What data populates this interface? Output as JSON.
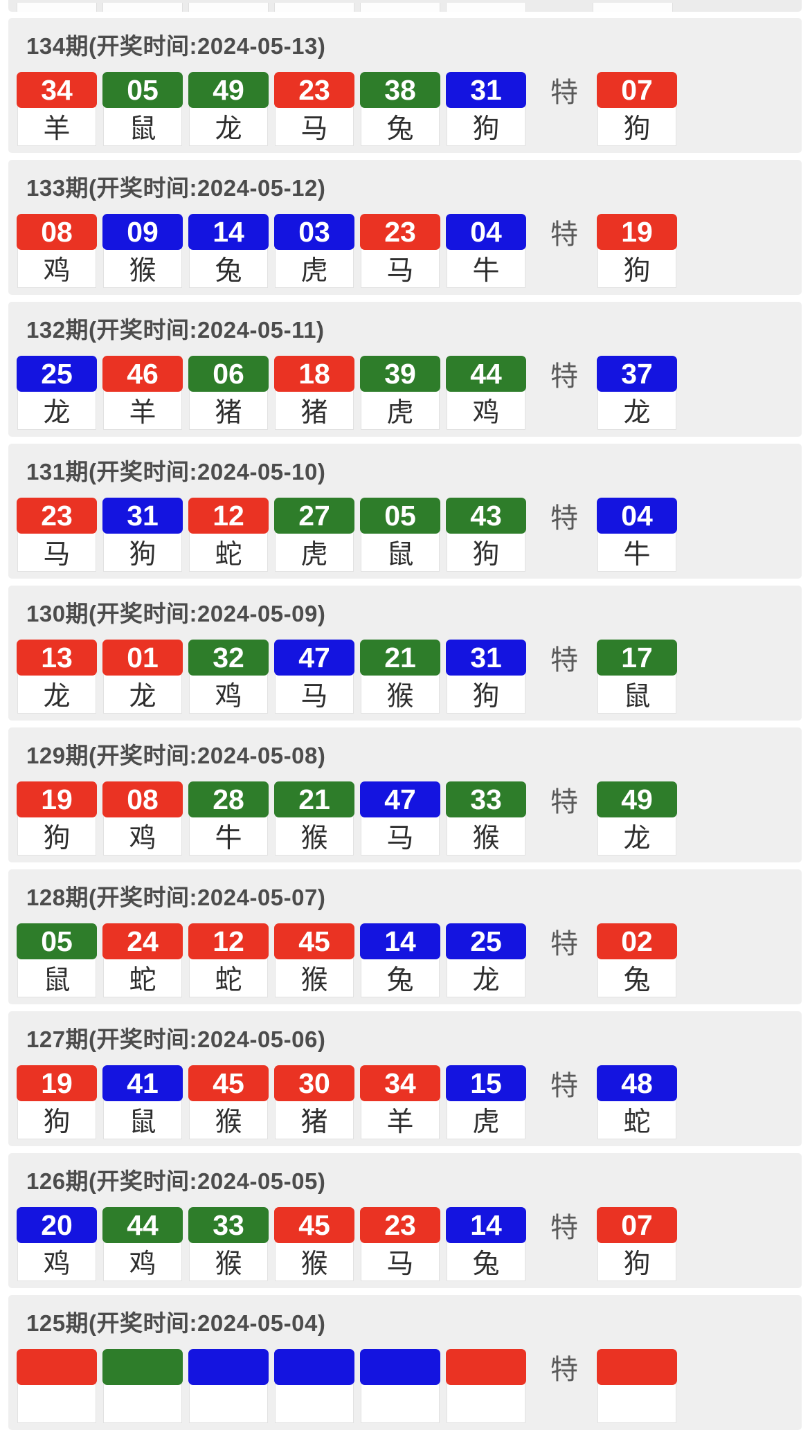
{
  "special_label": "特",
  "colors": {
    "red": "#ea3323",
    "green": "#2e7d2a",
    "blue": "#1414e0"
  },
  "periods": [
    {
      "title": "134期(开奖时间:2024-05-13)",
      "balls": [
        {
          "num": "34",
          "color": "red",
          "zodiac": "羊"
        },
        {
          "num": "05",
          "color": "green",
          "zodiac": "鼠"
        },
        {
          "num": "49",
          "color": "green",
          "zodiac": "龙"
        },
        {
          "num": "23",
          "color": "red",
          "zodiac": "马"
        },
        {
          "num": "38",
          "color": "green",
          "zodiac": "兔"
        },
        {
          "num": "31",
          "color": "blue",
          "zodiac": "狗"
        }
      ],
      "special": {
        "num": "07",
        "color": "red",
        "zodiac": "狗"
      }
    },
    {
      "title": "133期(开奖时间:2024-05-12)",
      "balls": [
        {
          "num": "08",
          "color": "red",
          "zodiac": "鸡"
        },
        {
          "num": "09",
          "color": "blue",
          "zodiac": "猴"
        },
        {
          "num": "14",
          "color": "blue",
          "zodiac": "兔"
        },
        {
          "num": "03",
          "color": "blue",
          "zodiac": "虎"
        },
        {
          "num": "23",
          "color": "red",
          "zodiac": "马"
        },
        {
          "num": "04",
          "color": "blue",
          "zodiac": "牛"
        }
      ],
      "special": {
        "num": "19",
        "color": "red",
        "zodiac": "狗"
      }
    },
    {
      "title": "132期(开奖时间:2024-05-11)",
      "balls": [
        {
          "num": "25",
          "color": "blue",
          "zodiac": "龙"
        },
        {
          "num": "46",
          "color": "red",
          "zodiac": "羊"
        },
        {
          "num": "06",
          "color": "green",
          "zodiac": "猪"
        },
        {
          "num": "18",
          "color": "red",
          "zodiac": "猪"
        },
        {
          "num": "39",
          "color": "green",
          "zodiac": "虎"
        },
        {
          "num": "44",
          "color": "green",
          "zodiac": "鸡"
        }
      ],
      "special": {
        "num": "37",
        "color": "blue",
        "zodiac": "龙"
      }
    },
    {
      "title": "131期(开奖时间:2024-05-10)",
      "balls": [
        {
          "num": "23",
          "color": "red",
          "zodiac": "马"
        },
        {
          "num": "31",
          "color": "blue",
          "zodiac": "狗"
        },
        {
          "num": "12",
          "color": "red",
          "zodiac": "蛇"
        },
        {
          "num": "27",
          "color": "green",
          "zodiac": "虎"
        },
        {
          "num": "05",
          "color": "green",
          "zodiac": "鼠"
        },
        {
          "num": "43",
          "color": "green",
          "zodiac": "狗"
        }
      ],
      "special": {
        "num": "04",
        "color": "blue",
        "zodiac": "牛"
      }
    },
    {
      "title": "130期(开奖时间:2024-05-09)",
      "balls": [
        {
          "num": "13",
          "color": "red",
          "zodiac": "龙"
        },
        {
          "num": "01",
          "color": "red",
          "zodiac": "龙"
        },
        {
          "num": "32",
          "color": "green",
          "zodiac": "鸡"
        },
        {
          "num": "47",
          "color": "blue",
          "zodiac": "马"
        },
        {
          "num": "21",
          "color": "green",
          "zodiac": "猴"
        },
        {
          "num": "31",
          "color": "blue",
          "zodiac": "狗"
        }
      ],
      "special": {
        "num": "17",
        "color": "green",
        "zodiac": "鼠"
      }
    },
    {
      "title": "129期(开奖时间:2024-05-08)",
      "balls": [
        {
          "num": "19",
          "color": "red",
          "zodiac": "狗"
        },
        {
          "num": "08",
          "color": "red",
          "zodiac": "鸡"
        },
        {
          "num": "28",
          "color": "green",
          "zodiac": "牛"
        },
        {
          "num": "21",
          "color": "green",
          "zodiac": "猴"
        },
        {
          "num": "47",
          "color": "blue",
          "zodiac": "马"
        },
        {
          "num": "33",
          "color": "green",
          "zodiac": "猴"
        }
      ],
      "special": {
        "num": "49",
        "color": "green",
        "zodiac": "龙"
      }
    },
    {
      "title": "128期(开奖时间:2024-05-07)",
      "balls": [
        {
          "num": "05",
          "color": "green",
          "zodiac": "鼠"
        },
        {
          "num": "24",
          "color": "red",
          "zodiac": "蛇"
        },
        {
          "num": "12",
          "color": "red",
          "zodiac": "蛇"
        },
        {
          "num": "45",
          "color": "red",
          "zodiac": "猴"
        },
        {
          "num": "14",
          "color": "blue",
          "zodiac": "兔"
        },
        {
          "num": "25",
          "color": "blue",
          "zodiac": "龙"
        }
      ],
      "special": {
        "num": "02",
        "color": "red",
        "zodiac": "兔"
      }
    },
    {
      "title": "127期(开奖时间:2024-05-06)",
      "balls": [
        {
          "num": "19",
          "color": "red",
          "zodiac": "狗"
        },
        {
          "num": "41",
          "color": "blue",
          "zodiac": "鼠"
        },
        {
          "num": "45",
          "color": "red",
          "zodiac": "猴"
        },
        {
          "num": "30",
          "color": "red",
          "zodiac": "猪"
        },
        {
          "num": "34",
          "color": "red",
          "zodiac": "羊"
        },
        {
          "num": "15",
          "color": "blue",
          "zodiac": "虎"
        }
      ],
      "special": {
        "num": "48",
        "color": "blue",
        "zodiac": "蛇"
      }
    },
    {
      "title": "126期(开奖时间:2024-05-05)",
      "balls": [
        {
          "num": "20",
          "color": "blue",
          "zodiac": "鸡"
        },
        {
          "num": "44",
          "color": "green",
          "zodiac": "鸡"
        },
        {
          "num": "33",
          "color": "green",
          "zodiac": "猴"
        },
        {
          "num": "45",
          "color": "red",
          "zodiac": "猴"
        },
        {
          "num": "23",
          "color": "red",
          "zodiac": "马"
        },
        {
          "num": "14",
          "color": "blue",
          "zodiac": "兔"
        }
      ],
      "special": {
        "num": "07",
        "color": "red",
        "zodiac": "狗"
      }
    },
    {
      "title": "125期(开奖时间:2024-05-04)",
      "balls": [
        {
          "num": "",
          "color": "red",
          "zodiac": ""
        },
        {
          "num": "",
          "color": "green",
          "zodiac": ""
        },
        {
          "num": "",
          "color": "blue",
          "zodiac": ""
        },
        {
          "num": "",
          "color": "blue",
          "zodiac": ""
        },
        {
          "num": "",
          "color": "blue",
          "zodiac": ""
        },
        {
          "num": "",
          "color": "red",
          "zodiac": ""
        }
      ],
      "special": {
        "num": "",
        "color": "red",
        "zodiac": ""
      }
    }
  ]
}
